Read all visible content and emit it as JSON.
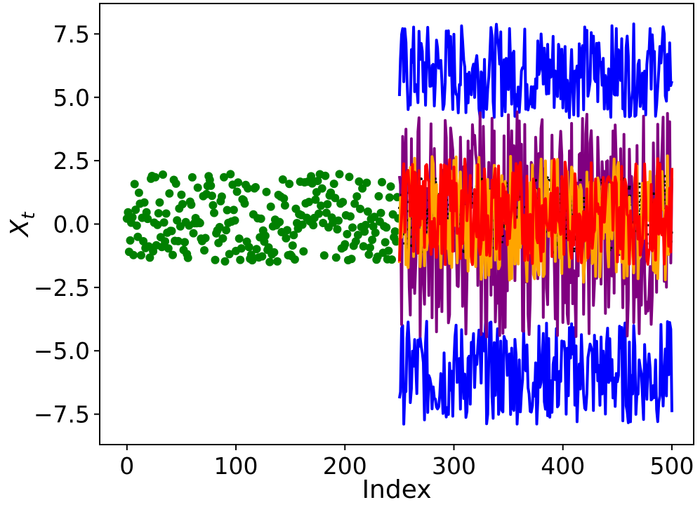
{
  "chart_data": {
    "type": "scatter",
    "xlabel": "Index",
    "ylabel": "X",
    "ylabel_subscript": "t",
    "xlim": [
      -25,
      520
    ],
    "ylim": [
      -8.7,
      8.7
    ],
    "x_ticks": [
      0,
      100,
      200,
      300,
      400,
      500
    ],
    "y_ticks": [
      -7.5,
      -5.0,
      -2.5,
      0.0,
      2.5,
      5.0,
      7.5
    ],
    "x_tick_labels": [
      "0",
      "100",
      "200",
      "300",
      "400",
      "500"
    ],
    "y_tick_labels": [
      "−7.5",
      "−5.0",
      "−2.5",
      "0.0",
      "2.5",
      "5.0",
      "7.5"
    ],
    "grid": false,
    "observed_points": {
      "color": "#008000",
      "x_range": [
        0,
        250
      ],
      "y_range": [
        -1.5,
        2.0
      ],
      "count": 250
    },
    "forecast_series": [
      {
        "color": "#0000ff",
        "x_range": [
          250,
          500
        ],
        "band": "upper",
        "y_range": [
          4.2,
          7.9
        ]
      },
      {
        "color": "#0000ff",
        "x_range": [
          250,
          500
        ],
        "band": "lower",
        "y_range": [
          -7.9,
          -3.8
        ]
      },
      {
        "color": "#800080",
        "x_range": [
          250,
          500
        ],
        "y_range": [
          -4.5,
          4.5
        ]
      },
      {
        "color": "#000000",
        "x_range": [
          250,
          500
        ],
        "y_range": [
          -1.2,
          2.0
        ],
        "style": "dotted"
      },
      {
        "color": "#ffa500",
        "x_range": [
          250,
          500
        ],
        "y_range": [
          -2.3,
          2.7
        ]
      },
      {
        "color": "#ff0000",
        "x_range": [
          250,
          500
        ],
        "y_range": [
          -1.6,
          2.6
        ]
      }
    ]
  }
}
